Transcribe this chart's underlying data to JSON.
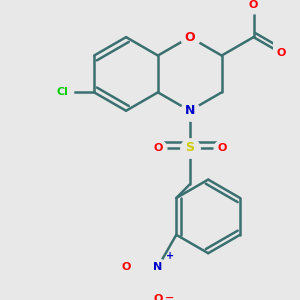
{
  "bg_color": "#e8e8e8",
  "bond_color": "#3a7070",
  "bond_width": 1.8,
  "atom_colors": {
    "O": "#ff0000",
    "N": "#0000cc",
    "S": "#cccc00",
    "Cl": "#00cc00",
    "C": "#3a7070"
  },
  "fig_size": [
    3.0,
    3.0
  ],
  "dpi": 100,
  "xlim": [
    -3.5,
    3.5
  ],
  "ylim": [
    -4.5,
    2.5
  ]
}
